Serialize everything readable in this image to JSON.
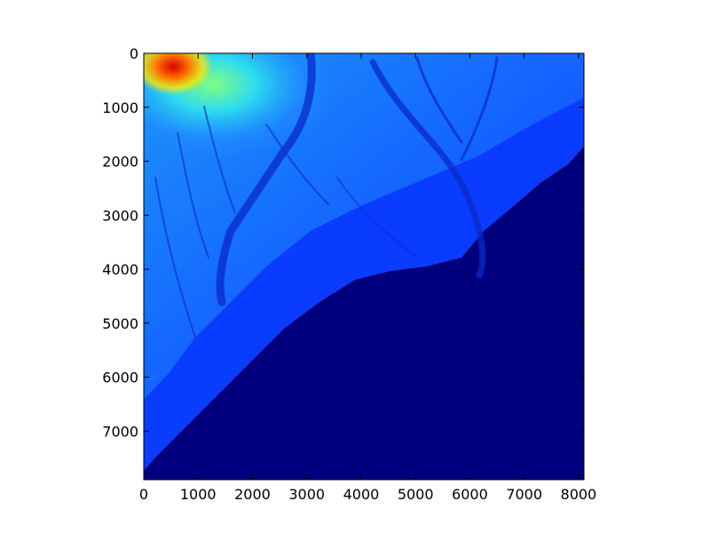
{
  "chart_data": {
    "type": "heatmap",
    "title": "",
    "xlabel": "",
    "ylabel": "",
    "colormap": "jet",
    "image_extent": {
      "x": [
        0,
        8100
      ],
      "y": [
        0,
        7900
      ]
    },
    "xlim": [
      0,
      8100
    ],
    "ylim": [
      7900,
      0
    ],
    "y_axis_inverted": true,
    "grid": false,
    "legend": "none",
    "x_ticks": [
      {
        "value": 0,
        "label": "0"
      },
      {
        "value": 1000,
        "label": "1000"
      },
      {
        "value": 2000,
        "label": "2000"
      },
      {
        "value": 3000,
        "label": "3000"
      },
      {
        "value": 4000,
        "label": "4000"
      },
      {
        "value": 5000,
        "label": "5000"
      },
      {
        "value": 6000,
        "label": "6000"
      },
      {
        "value": 7000,
        "label": "7000"
      },
      {
        "value": 8000,
        "label": "8000"
      }
    ],
    "y_ticks": [
      {
        "value": 0,
        "label": "0"
      },
      {
        "value": 1000,
        "label": "1000"
      },
      {
        "value": 2000,
        "label": "2000"
      },
      {
        "value": 3000,
        "label": "3000"
      },
      {
        "value": 4000,
        "label": "4000"
      },
      {
        "value": 5000,
        "label": "5000"
      },
      {
        "value": 6000,
        "label": "6000"
      },
      {
        "value": 7000,
        "label": "7000"
      }
    ],
    "colors": {
      "low": "#00007f",
      "mid_low": "#0a3cff",
      "mid": "#1e8cff",
      "mid_high": "#2ddcf0",
      "high": "#ffe600",
      "peak": "#d70000",
      "axis": "#000000"
    }
  }
}
